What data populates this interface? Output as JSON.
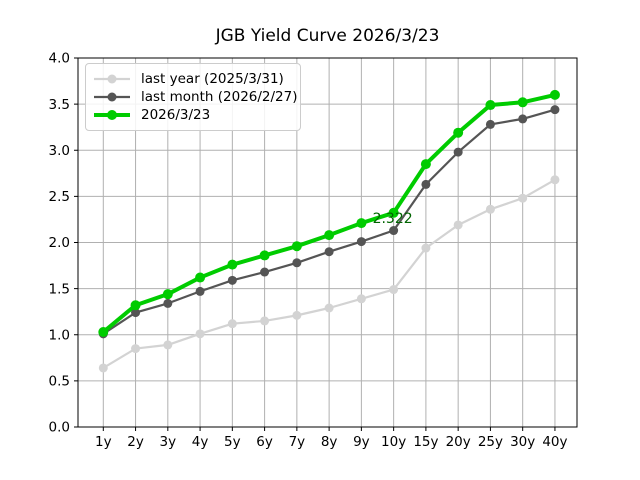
{
  "figure": {
    "title": "JGB Yield Curve 2026/3/23"
  },
  "chart_data": {
    "type": "line",
    "title": "JGB Yield Curve 2026/3/23",
    "xlabel": "",
    "ylabel": "",
    "categories": [
      "1y",
      "2y",
      "3y",
      "4y",
      "5y",
      "6y",
      "7y",
      "8y",
      "9y",
      "10y",
      "15y",
      "20y",
      "25y",
      "30y",
      "40y"
    ],
    "ylim": [
      0.0,
      4.0
    ],
    "yticks": [
      0.0,
      0.5,
      1.0,
      1.5,
      2.0,
      2.5,
      3.0,
      3.5,
      4.0
    ],
    "ytick_labels": [
      "0.0",
      "0.5",
      "1.0",
      "1.5",
      "2.0",
      "2.5",
      "3.0",
      "3.5",
      "4.0"
    ],
    "grid": true,
    "grid_color": "#b0b0b0",
    "axes_edge_color": "#000000",
    "legend_position": "upper left",
    "series": [
      {
        "name": "last year (2025/3/31)",
        "color": "#d3d3d3",
        "line_width": 2.2,
        "marker": "circle",
        "marker_radius": 4.5,
        "values": [
          0.64,
          0.85,
          0.89,
          1.01,
          1.12,
          1.15,
          1.21,
          1.29,
          1.39,
          1.49,
          1.94,
          2.19,
          2.36,
          2.48,
          2.68
        ]
      },
      {
        "name": "last month (2026/2/27)",
        "color": "#555555",
        "line_width": 2.2,
        "marker": "circle",
        "marker_radius": 4.5,
        "values": [
          1.01,
          1.24,
          1.34,
          1.47,
          1.59,
          1.68,
          1.78,
          1.9,
          2.01,
          2.13,
          2.63,
          2.98,
          3.28,
          3.34,
          3.44
        ]
      },
      {
        "name": "2026/3/23",
        "color": "#00cc00",
        "line_width": 4,
        "marker": "circle",
        "marker_radius": 5,
        "values": [
          1.03,
          1.32,
          1.44,
          1.62,
          1.76,
          1.86,
          1.96,
          2.08,
          2.21,
          2.322,
          2.85,
          3.19,
          3.49,
          3.52,
          3.6
        ]
      }
    ],
    "annotation": {
      "text": "2.322",
      "category": "10y",
      "value": 2.322,
      "color": "#006400"
    }
  }
}
